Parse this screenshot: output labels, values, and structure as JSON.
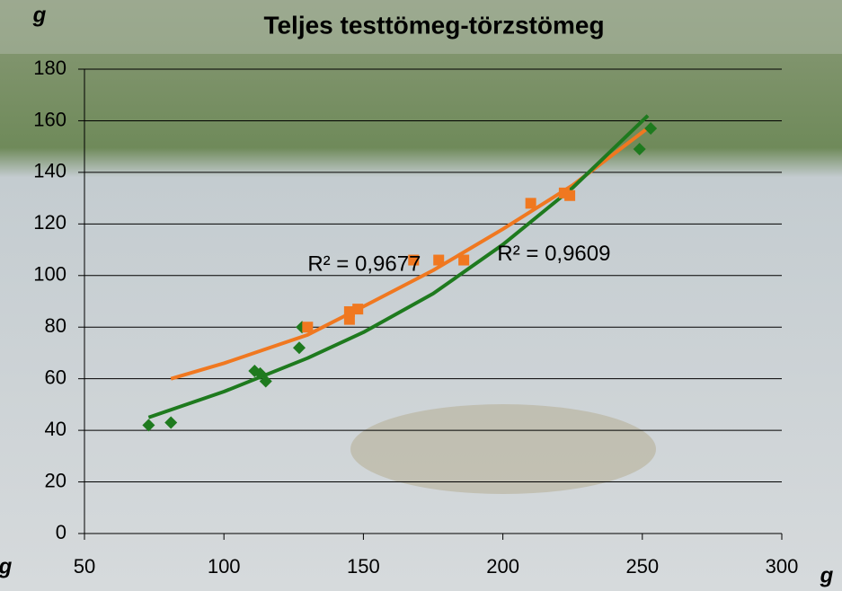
{
  "chart_data": {
    "type": "scatter",
    "title": "Teljes testtömeg-törzstömeg",
    "y_axis_label": "g",
    "x_axis_label": "g",
    "x_axis_label_left": "g",
    "xlim": [
      50,
      300
    ],
    "xticks": [
      50,
      100,
      150,
      200,
      250,
      300
    ],
    "ylim": [
      0,
      180
    ],
    "yticks": [
      0,
      20,
      40,
      60,
      80,
      100,
      120,
      140,
      160,
      180
    ],
    "grid": true,
    "series": [
      {
        "color": "#1e7a1e",
        "marker": "diamond",
        "x": [
          73,
          81,
          111,
          113,
          115,
          127,
          128,
          249,
          253
        ],
        "values": [
          42,
          43,
          63,
          62,
          59,
          72,
          80,
          149,
          157
        ]
      },
      {
        "color": "#f07820",
        "marker": "square",
        "x": [
          130,
          145,
          145,
          148,
          168,
          177,
          186,
          210,
          222,
          224
        ],
        "values": [
          80,
          83,
          86,
          87,
          106,
          106,
          106,
          128,
          132,
          131
        ]
      }
    ],
    "trendlines": [
      {
        "color": "#f07820",
        "x": [
          81,
          100,
          130,
          150,
          175,
          200,
          225,
          253
        ],
        "values": [
          60,
          66,
          77,
          88,
          102,
          118,
          135,
          158
        ]
      },
      {
        "color": "#1e7a1e",
        "x": [
          73,
          100,
          130,
          150,
          175,
          200,
          225,
          252
        ],
        "values": [
          45,
          55,
          68,
          78,
          93,
          112,
          134,
          162
        ]
      }
    ],
    "annotations": [
      {
        "text": "R² = 0,9677",
        "x": 130,
        "y": 104
      },
      {
        "text": "R² = 0,9609",
        "x": 198,
        "y": 108
      }
    ]
  }
}
